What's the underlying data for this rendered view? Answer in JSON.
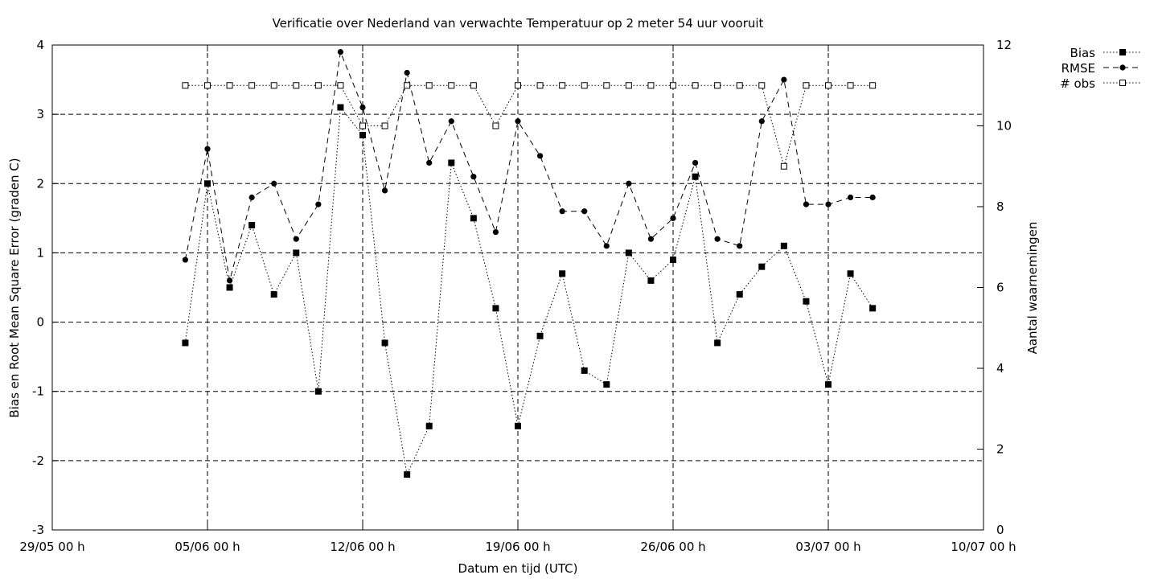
{
  "chart_data": {
    "type": "line",
    "title": "Verificatie over Nederland van verwachte Temperatuur op 2 meter 54 uur vooruit",
    "xlabel": "Datum en tijd (UTC)",
    "ylabel": "Bias en Root Mean Square Error (graden C)",
    "y2label": "Aantal waarnemingen",
    "x_ticks": [
      "29/05 00 h",
      "05/06 00 h",
      "12/06 00 h",
      "19/06 00 h",
      "26/06 00 h",
      "03/07 00 h",
      "10/07 00 h"
    ],
    "x_range_days": [
      0,
      42
    ],
    "ylim": [
      -3,
      4
    ],
    "y_ticks": [
      -3,
      -2,
      -1,
      0,
      1,
      2,
      3,
      4
    ],
    "y2lim": [
      0,
      12
    ],
    "y2_ticks": [
      0,
      2,
      4,
      6,
      8,
      10,
      12
    ],
    "grid": true,
    "legend_position": "top-right outside",
    "x_days": [
      6,
      7,
      8,
      9,
      10,
      11,
      12,
      13,
      14,
      15,
      16,
      17,
      18,
      19,
      20,
      21,
      22,
      23,
      24,
      25,
      26,
      27,
      28,
      29,
      30,
      31,
      32,
      33,
      34,
      35,
      36,
      37
    ],
    "series": [
      {
        "name": "Bias",
        "axis": "left",
        "marker": "filled-square",
        "line": "dotted",
        "values": [
          -0.3,
          2.0,
          0.5,
          1.4,
          0.4,
          1.0,
          -1.0,
          3.1,
          2.7,
          -0.3,
          -2.2,
          -1.5,
          2.3,
          1.5,
          0.2,
          -1.5,
          -0.2,
          0.7,
          -0.7,
          -0.9,
          1.0,
          0.6,
          0.9,
          2.1,
          -0.3,
          0.4,
          0.8,
          1.1,
          0.3,
          -0.9,
          0.7,
          0.2
        ]
      },
      {
        "name": "RMSE",
        "axis": "left",
        "marker": "filled-circle",
        "line": "dashed",
        "values": [
          0.9,
          2.5,
          0.6,
          1.8,
          2.0,
          1.2,
          1.7,
          3.9,
          3.1,
          1.9,
          3.6,
          2.3,
          2.9,
          2.1,
          1.3,
          2.9,
          2.4,
          1.6,
          1.6,
          1.1,
          2.0,
          1.2,
          1.5,
          2.3,
          1.2,
          1.1,
          2.9,
          3.5,
          1.7,
          1.7,
          1.8,
          1.8
        ]
      },
      {
        "name": "# obs",
        "axis": "right",
        "marker": "open-square",
        "line": "dotted",
        "values": [
          11,
          11,
          11,
          11,
          11,
          11,
          11,
          11,
          10,
          10,
          11,
          11,
          11,
          11,
          10,
          11,
          11,
          11,
          11,
          11,
          11,
          11,
          11,
          11,
          11,
          11,
          11,
          9,
          11,
          11,
          11,
          11
        ]
      }
    ]
  }
}
